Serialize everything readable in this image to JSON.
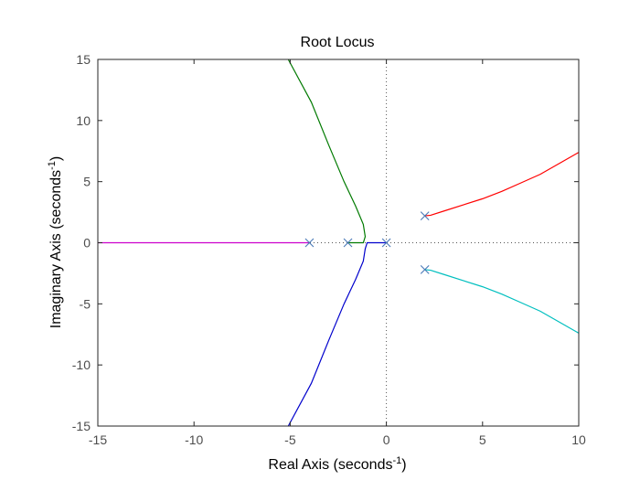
{
  "chart_data": {
    "type": "line",
    "title": "Root Locus",
    "xlabel": {
      "text": "Real Axis (seconds",
      "sup": "-1",
      "close": ")"
    },
    "ylabel": {
      "text": "Imaginary Axis (seconds",
      "sup": "-1",
      "close": ")"
    },
    "xlim": [
      -15,
      10
    ],
    "ylim": [
      -15,
      15
    ],
    "xticks": [
      -15,
      -10,
      -5,
      0,
      5,
      10
    ],
    "xtick_labels": [
      "-15",
      "-10",
      "-5",
      "0",
      "5",
      "10"
    ],
    "yticks": [
      -15,
      -10,
      -5,
      0,
      5,
      10,
      15
    ],
    "ytick_labels": [
      "-15",
      "-10",
      "-5",
      "0",
      "5",
      "10",
      "15"
    ],
    "grid": false,
    "poles": [
      {
        "re": -4,
        "im": 0
      },
      {
        "re": -2,
        "im": 0
      },
      {
        "re": 0,
        "im": 0
      },
      {
        "re": 2,
        "im": 2.2
      },
      {
        "re": 2,
        "im": -2.2
      }
    ],
    "series": [
      {
        "color": "#cc00cc",
        "points": [
          [
            -4,
            0
          ],
          [
            -6,
            0
          ],
          [
            -9,
            0
          ],
          [
            -12,
            0
          ],
          [
            -15,
            0
          ]
        ]
      },
      {
        "color": "#007a00",
        "points": [
          [
            -2,
            0
          ],
          [
            -1.5,
            0
          ],
          [
            -1.2,
            0
          ],
          [
            -1.1,
            0.5
          ],
          [
            -1.2,
            1.5
          ],
          [
            -1.6,
            3
          ],
          [
            -2.2,
            5
          ],
          [
            -3.0,
            8
          ],
          [
            -3.9,
            11.5
          ],
          [
            -5.1,
            15
          ]
        ]
      },
      {
        "color": "#0000cc",
        "points": [
          [
            0,
            0
          ],
          [
            -0.5,
            0
          ],
          [
            -1.0,
            0
          ],
          [
            -1.1,
            -0.5
          ],
          [
            -1.2,
            -1.5
          ],
          [
            -1.6,
            -3
          ],
          [
            -2.2,
            -5
          ],
          [
            -3.0,
            -8
          ],
          [
            -3.9,
            -11.5
          ],
          [
            -5.1,
            -15
          ]
        ]
      },
      {
        "color": "#ff0000",
        "points": [
          [
            2,
            2.2
          ],
          [
            2.3,
            2.25
          ],
          [
            3,
            2.6
          ],
          [
            4,
            3.1
          ],
          [
            5,
            3.6
          ],
          [
            6,
            4.2
          ],
          [
            7,
            4.9
          ],
          [
            8,
            5.6
          ],
          [
            9,
            6.5
          ],
          [
            10,
            7.4
          ]
        ]
      },
      {
        "color": "#00bfbf",
        "points": [
          [
            2,
            -2.2
          ],
          [
            2.3,
            -2.25
          ],
          [
            3,
            -2.6
          ],
          [
            4,
            -3.1
          ],
          [
            5,
            -3.6
          ],
          [
            6,
            -4.2
          ],
          [
            7,
            -4.9
          ],
          [
            8,
            -5.6
          ],
          [
            9,
            -6.5
          ],
          [
            10,
            -7.4
          ]
        ]
      }
    ],
    "pole_color": "#4a7ab8",
    "zero_axis_style": "dotted"
  }
}
